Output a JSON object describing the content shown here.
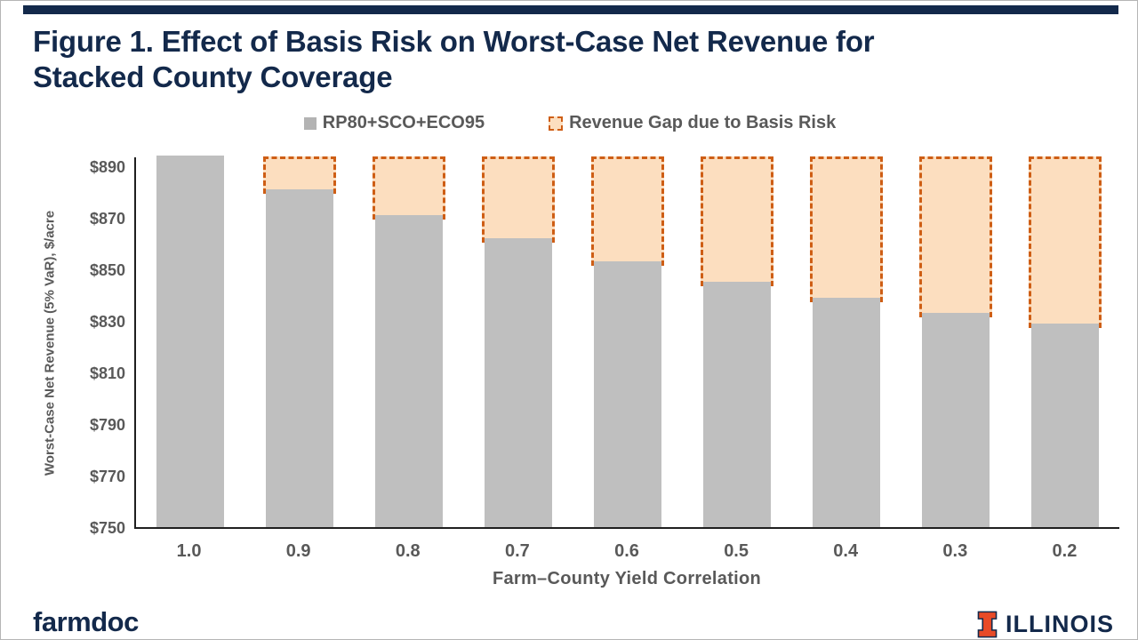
{
  "slide": {
    "title_line1": "Figure 1. Effect of Basis Risk on Worst-Case Net Revenue for",
    "title_line2": "Stacked County Coverage"
  },
  "legend": {
    "rp_label": "RP80+SCO+ECO95",
    "gap_label": "Revenue Gap due to Basis Risk"
  },
  "chart_data": {
    "type": "bar",
    "title": "Figure 1. Effect of Basis Risk on Worst-Case Net Revenue for Stacked County Coverage",
    "categories": [
      "1.0",
      "0.9",
      "0.8",
      "0.7",
      "0.6",
      "0.5",
      "0.4",
      "0.3",
      "0.2"
    ],
    "series": [
      {
        "name": "RP80+SCO+ECO95",
        "type": "solid-bar",
        "values": [
          894,
          881,
          871,
          862,
          853,
          845,
          839,
          833,
          829
        ],
        "color": "#BFBFBF"
      },
      {
        "name": "Revenue Gap due to Basis Risk",
        "type": "dashed-gap-box",
        "values": [
          0,
          13,
          23,
          32,
          41,
          49,
          55,
          61,
          65
        ],
        "extends_to": 894,
        "fill": "#FCDEBF",
        "border": "#CE5E15"
      }
    ],
    "xlabel": "Farm–County Yield Correlation",
    "ylabel": "Worst-Case Net Revenue (5% VaR), $/acre",
    "ylim": [
      750,
      894
    ],
    "yticks": [
      750,
      770,
      790,
      810,
      830,
      850,
      870,
      890
    ],
    "ytick_prefix": "$",
    "grid": false,
    "legend_position": "top"
  },
  "footer": {
    "brand_left": "farmdoc",
    "brand_right": "ILLINOIS"
  },
  "colors": {
    "navy": "#13294B",
    "bar_gray": "#BFBFBF",
    "gap_fill": "#FCDEBF",
    "gap_border": "#CE5E15",
    "axis_text": "#595959",
    "illinois_orange": "#E84A27"
  }
}
